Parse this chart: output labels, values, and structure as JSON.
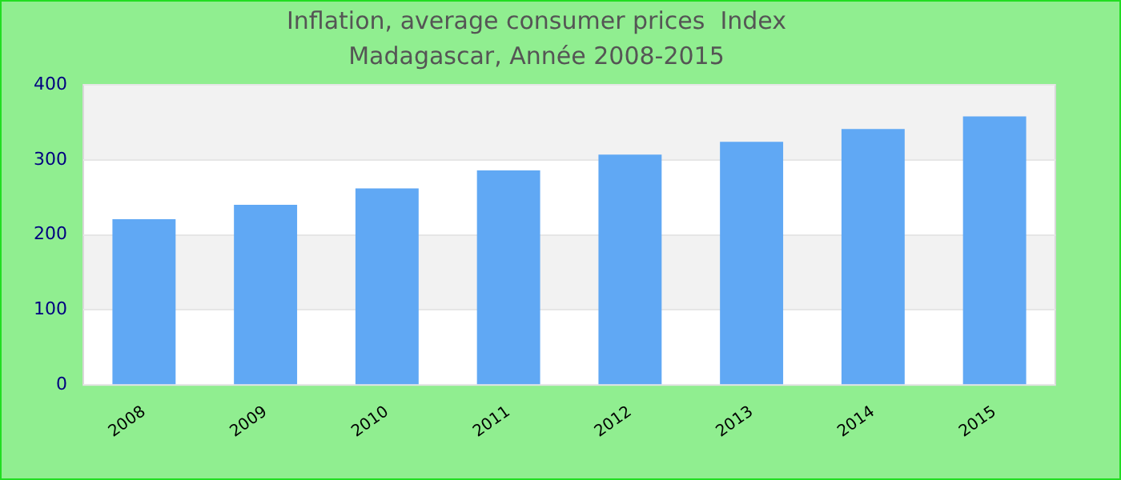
{
  "chart_data": {
    "type": "bar",
    "title": "Inflation, average consumer prices  Index",
    "subtitle": "Madagascar, Année 2008-2015",
    "categories": [
      "2008",
      "2009",
      "2010",
      "2011",
      "2012",
      "2013",
      "2014",
      "2015"
    ],
    "values": [
      221,
      240,
      262,
      286,
      307,
      324,
      341,
      358
    ],
    "color": "#60a8f4",
    "ylim": [
      0,
      400
    ],
    "yticks": [
      0,
      100,
      200,
      300,
      400
    ],
    "grid": "y"
  }
}
